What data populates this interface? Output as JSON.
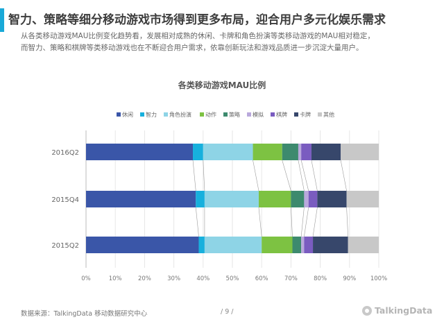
{
  "header": {
    "title": "智力、策略等细分移动游戏市场得到更多布局，迎合用户多元化娱乐需求",
    "description_line1": "从各类移动游戏MAU比例变化趋势看，发展相对成熟的休闲、卡牌和角色扮演等类移动游戏的MAU相对稳定，",
    "description_line2": "而智力、策略和棋牌等类移动游戏也在不断迎合用户需求，依靠创新玩法和游戏品质进一步沉淀大量用户。"
  },
  "chart_data": {
    "type": "bar",
    "orientation": "horizontal",
    "stacked": "percent",
    "title": "各类移动游戏MAU比例",
    "categories": [
      "2016Q2",
      "2015Q4",
      "2015Q2"
    ],
    "series": [
      {
        "name": "休闲",
        "color": "#3a56a8",
        "values": [
          36.5,
          37.5,
          38.5
        ]
      },
      {
        "name": "智力",
        "color": "#17b0dd",
        "values": [
          3.5,
          3.0,
          2.0
        ]
      },
      {
        "name": "角色扮演",
        "color": "#8ed4e6",
        "values": [
          17.0,
          18.5,
          19.5
        ]
      },
      {
        "name": "动作",
        "color": "#7dc242",
        "values": [
          10.0,
          11.0,
          10.5
        ]
      },
      {
        "name": "策略",
        "color": "#3d8a6e",
        "values": [
          5.5,
          4.5,
          3.0
        ]
      },
      {
        "name": "模拟",
        "color": "#b9a8dc",
        "values": [
          1.0,
          1.5,
          1.0
        ]
      },
      {
        "name": "棋牌",
        "color": "#7a5cc0",
        "values": [
          3.5,
          3.0,
          3.0
        ]
      },
      {
        "name": "卡牌",
        "color": "#37476b",
        "values": [
          10.0,
          10.0,
          12.0
        ]
      },
      {
        "name": "其他",
        "color": "#c8c8c8",
        "values": [
          13.0,
          11.0,
          10.5
        ]
      }
    ],
    "xticks": [
      "0%",
      "10%",
      "20%",
      "30%",
      "40%",
      "50%",
      "60%",
      "70%",
      "80%",
      "90%",
      "100%"
    ],
    "xlim": [
      0,
      100
    ],
    "legend": "top",
    "grid": true
  },
  "footer": {
    "source": "数据来源：TalkingData  移动数据研究中心",
    "page": "/ 9 /",
    "logo_text": "TalkingData"
  },
  "colors": {
    "accent": "#19a9d8"
  }
}
